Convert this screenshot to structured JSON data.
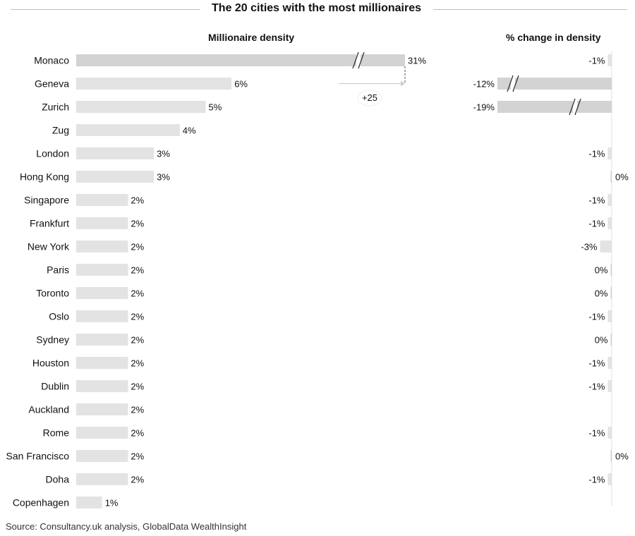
{
  "title": "The 20 cities with the most millionaires",
  "source": "Source: Consultancy.uk analysis, GlobalData WealthInsight",
  "colors": {
    "bar": "#e3e3e3",
    "bar_dark": "#d3d3d3",
    "text": "#111111",
    "rule": "#bdbdbd"
  },
  "annotation": {
    "label": "+25",
    "note_icon": "arrow-right-icon"
  },
  "chart_data": [
    {
      "type": "bar",
      "orientation": "horizontal",
      "title": "Millionaire density",
      "categories": [
        "Monaco",
        "Geneva",
        "Zurich",
        "Zug",
        "London",
        "Hong Kong",
        "Singapore",
        "Frankfurt",
        "New York",
        "Paris",
        "Toronto",
        "Oslo",
        "Sydney",
        "Houston",
        "Dublin",
        "Auckland",
        "Rome",
        "San Francisco",
        "Doha",
        "Copenhagen"
      ],
      "values": [
        31,
        6,
        5,
        4,
        3,
        3,
        2,
        2,
        2,
        2,
        2,
        2,
        2,
        2,
        2,
        2,
        2,
        2,
        2,
        1
      ],
      "value_labels": [
        "31%",
        "6%",
        "5%",
        "4%",
        "3%",
        "3%",
        "2%",
        "2%",
        "2%",
        "2%",
        "2%",
        "2%",
        "2%",
        "2%",
        "2%",
        "2%",
        "2%",
        "2%",
        "2%",
        "1%"
      ],
      "units": "%",
      "broken_bars": [
        "Monaco"
      ]
    },
    {
      "type": "bar",
      "orientation": "horizontal",
      "title": "% change in density",
      "categories": [
        "Monaco",
        "Geneva",
        "Zurich",
        "Zug",
        "London",
        "Hong Kong",
        "Singapore",
        "Frankfurt",
        "New York",
        "Paris",
        "Toronto",
        "Oslo",
        "Sydney",
        "Houston",
        "Dublin",
        "Auckland",
        "Rome",
        "San Francisco",
        "Doha",
        "Copenhagen"
      ],
      "values": [
        -1,
        -12,
        -19,
        null,
        -1,
        0,
        -1,
        -1,
        -3,
        0,
        0,
        -1,
        0,
        -1,
        -1,
        null,
        -1,
        0,
        -1,
        null
      ],
      "value_labels": [
        "-1%",
        "-12%",
        "-19%",
        "",
        "-1%",
        "0%",
        "-1%",
        "-1%",
        "-3%",
        "0%",
        "0%",
        "-1%",
        "0%",
        "-1%",
        "-1%",
        "",
        "-1%",
        "0%",
        "-1%",
        ""
      ],
      "units": "%",
      "broken_bars": [
        "Geneva",
        "Zurich"
      ]
    }
  ]
}
